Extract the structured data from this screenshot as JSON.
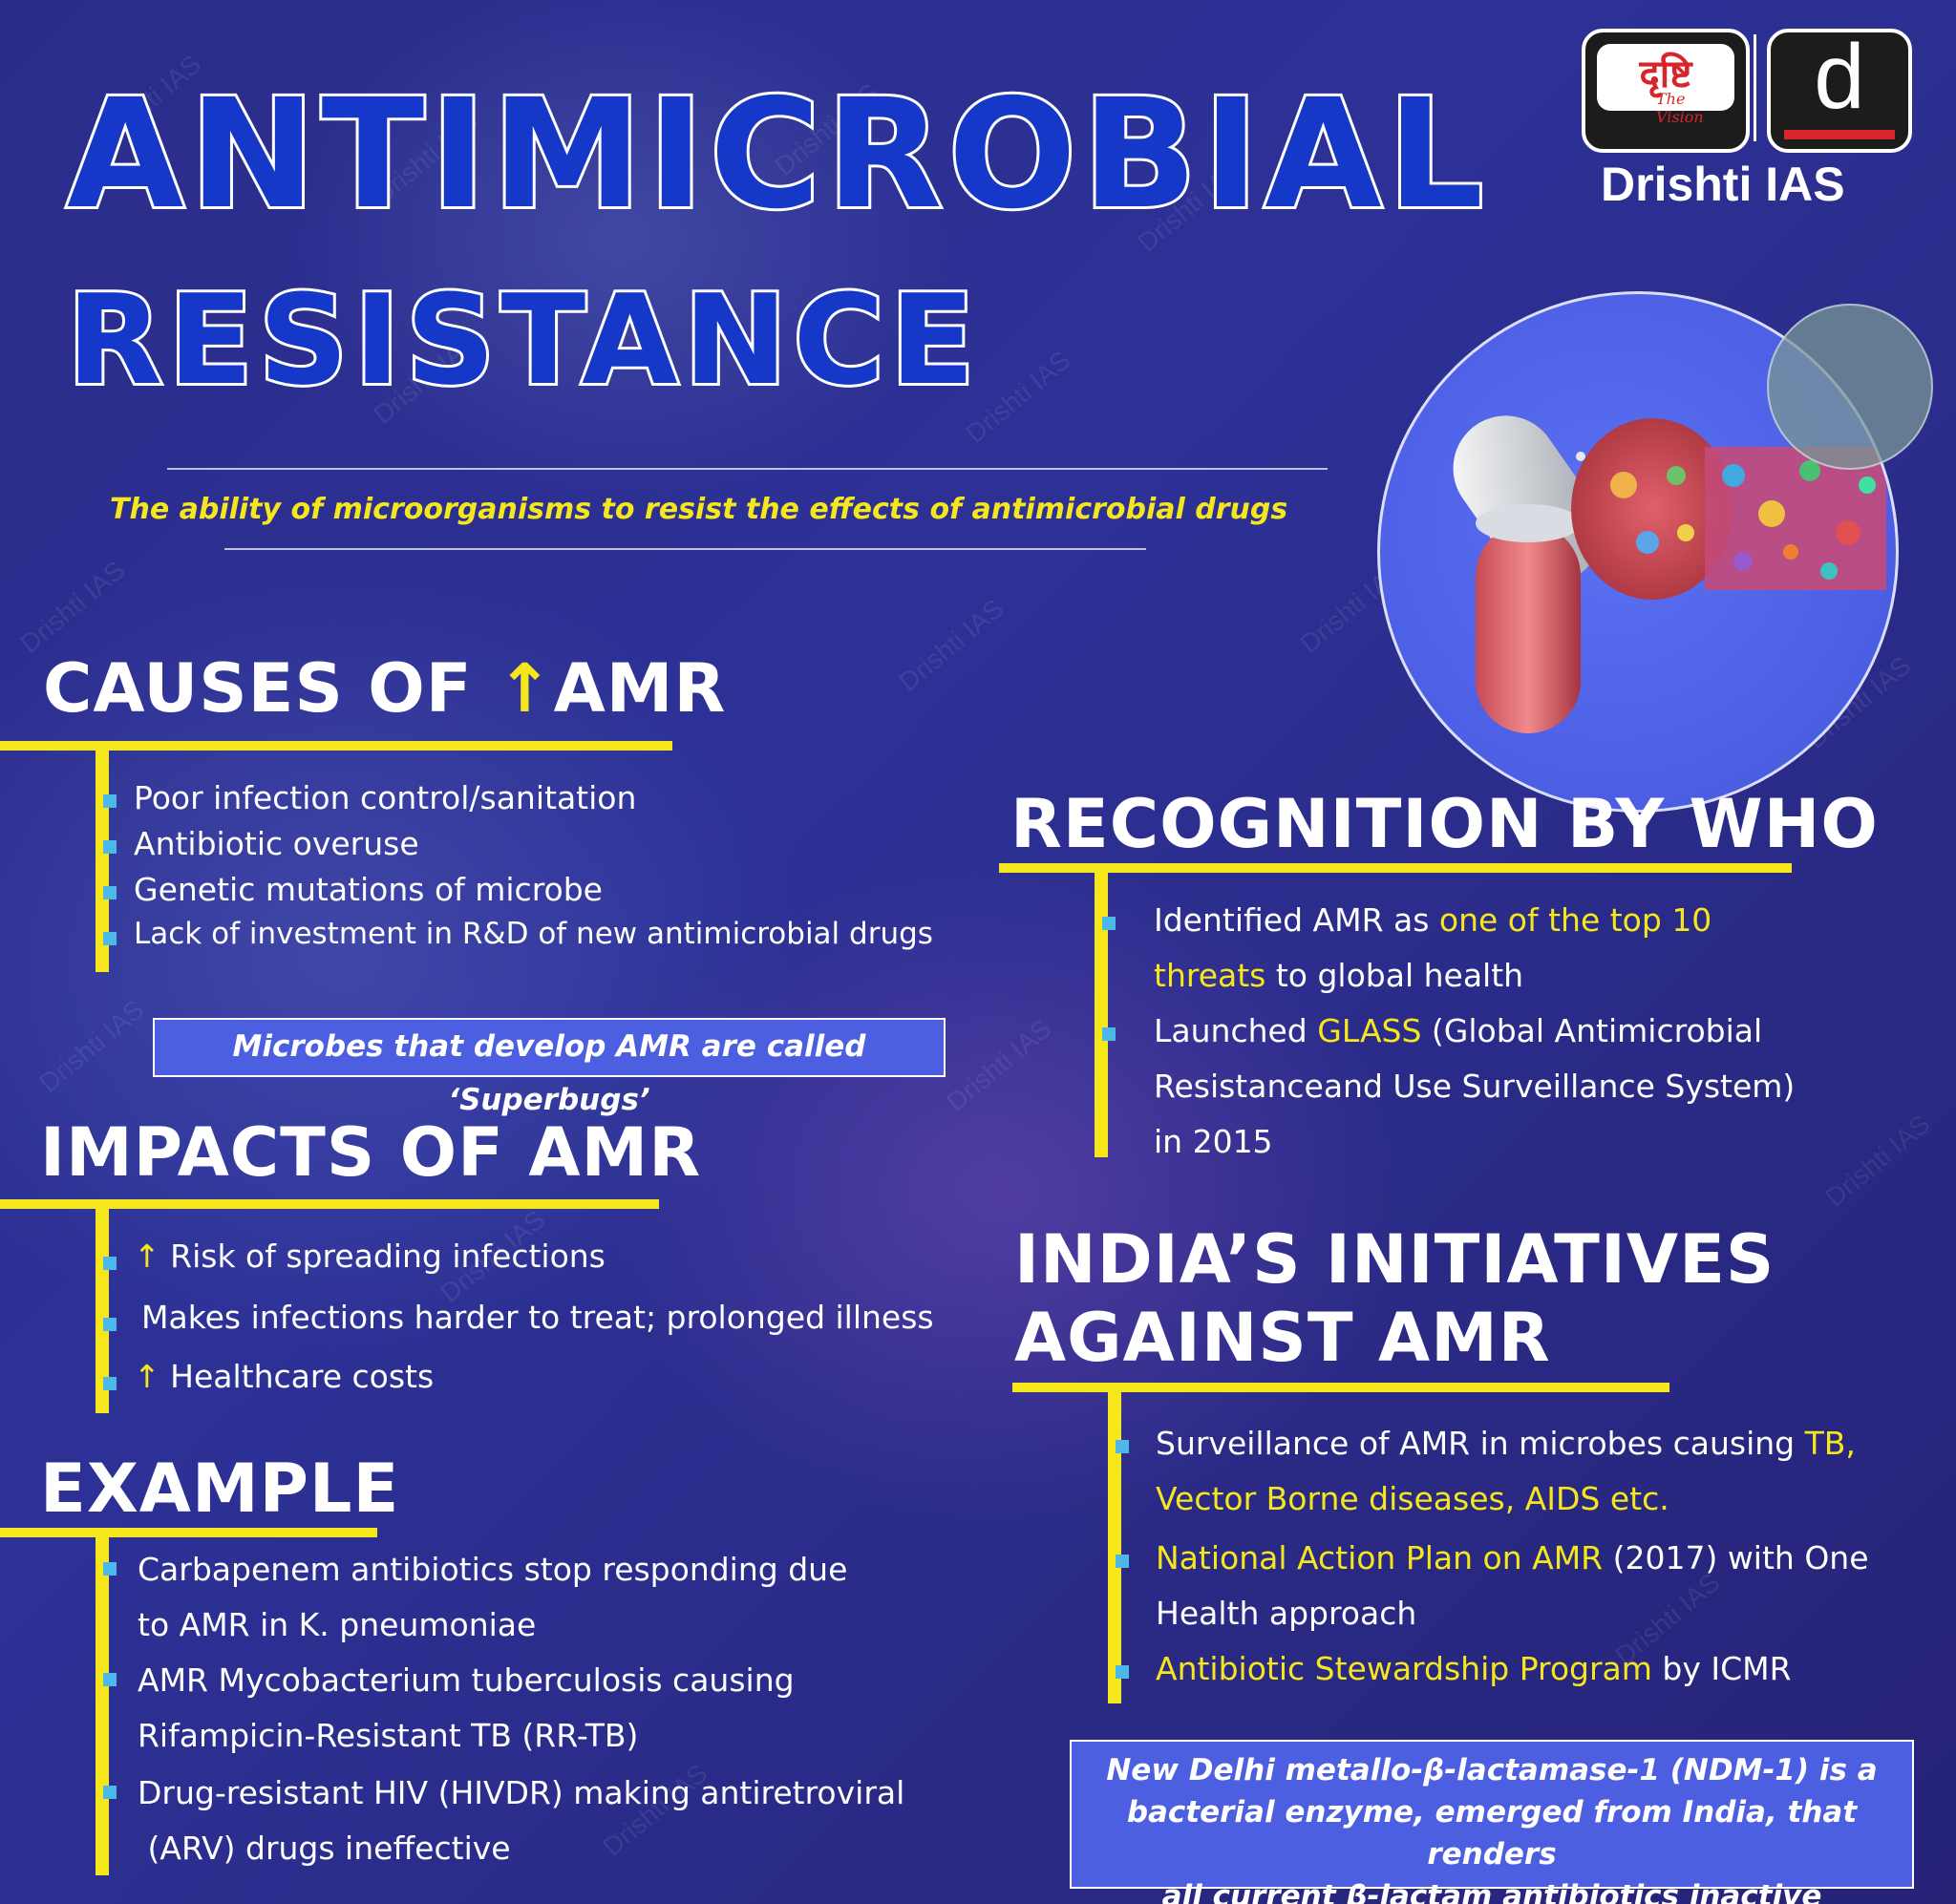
{
  "title": {
    "line1": "ANTIMICROBIAL",
    "line2": "RESISTANCE",
    "definition": "The ability of microorganisms to resist the effects of antimicrobial drugs"
  },
  "brand": {
    "logo_text": "दृष्टि",
    "logo_tagline": "The Vision",
    "logo_letter": "d",
    "name": "Drishti IAS",
    "watermark": "Drishti IAS"
  },
  "causes": {
    "heading_pre": "CAUSES OF ",
    "heading_arrow": "↑",
    "heading_post": "AMR",
    "items": [
      "Poor infection control/sanitation",
      "Antibiotic overuse",
      "Genetic mutations of microbe",
      "Lack of investment in R&D of new antimicrobial drugs"
    ],
    "note": "Microbes that develop AMR are called ‘Superbugs’"
  },
  "impacts": {
    "heading": "IMPACTS OF AMR",
    "arrow": "↑",
    "items": [
      "Risk of spreading infections",
      "Makes infections harder to treat; prolonged illness",
      "Healthcare costs"
    ]
  },
  "example": {
    "heading": "EXAMPLE",
    "lines": [
      "Carbapenem antibiotics stop responding due",
      "to AMR in K. pneumoniae",
      "AMR Mycobacterium tuberculosis causing",
      "Rifampicin-Resistant TB (RR-TB)",
      "Drug-resistant HIV (HIVDR) making antiretroviral",
      " (ARV) drugs ineffective"
    ]
  },
  "who": {
    "heading": "RECOGNITION BY WHO",
    "i1_pre": "Identified AMR as ",
    "i1_hl": "one of the top 10",
    "i1b_hl": "threats",
    "i1b_post": " to global health",
    "i2_pre": "Launched ",
    "i2_hl": "GLASS",
    "i2_post": " (Global Antimicrobial",
    "i2_line2": "Resistanceand Use Surveillance System)",
    "i2_line3": "in 2015"
  },
  "india": {
    "heading_line1": "INDIA’S INITIATIVES",
    "heading_line2": "AGAINST AMR",
    "i1_pre": "Surveillance of AMR in microbes causing ",
    "i1_hl": "TB,",
    "i1_line2_hl": "Vector Borne diseases, AIDS etc.",
    "i2_hl": "National Action Plan on AMR",
    "i2_post": " (2017) with One",
    "i2_line2": "Health approach",
    "i3_hl": "Antibiotic Stewardship Program",
    "i3_post": " by ICMR",
    "note_line1": "New Delhi metallo-β-lactamase-1 (NDM-1) is a",
    "note_line2": "bacterial enzyme, emerged from India, that renders",
    "note_line3": "all current β-lactam antibiotics inactive"
  },
  "colors": {
    "background": "#2d3196",
    "title_fill": "#1538c8",
    "accent_yellow": "#f5e71c",
    "bullet_blue": "#4db8e8",
    "note_box": "#4b5fe0",
    "logo_red": "#d7262b"
  }
}
